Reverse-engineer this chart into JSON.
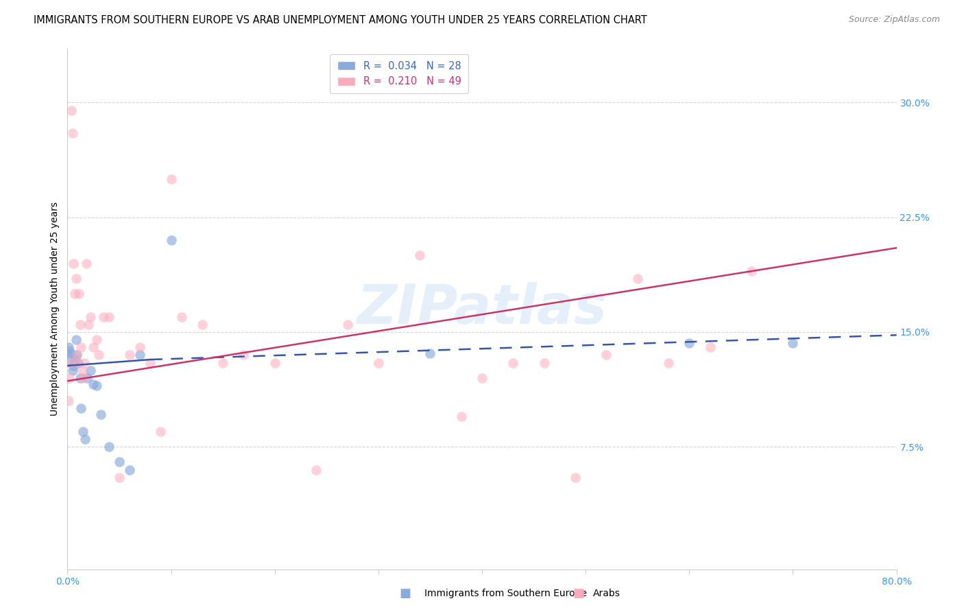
{
  "title": "IMMIGRANTS FROM SOUTHERN EUROPE VS ARAB UNEMPLOYMENT AMONG YOUTH UNDER 25 YEARS CORRELATION CHART",
  "source": "Source: ZipAtlas.com",
  "ylabel": "Unemployment Among Youth under 25 years",
  "ytick_vals": [
    0.0,
    0.075,
    0.15,
    0.225,
    0.3
  ],
  "ytick_labels": [
    "",
    "7.5%",
    "15.0%",
    "22.5%",
    "30.0%"
  ],
  "xlim": [
    0.0,
    0.8
  ],
  "ylim": [
    -0.005,
    0.335
  ],
  "watermark": "ZIPatlas",
  "blue_scatter_x": [
    0.0005,
    0.001,
    0.002,
    0.003,
    0.004,
    0.005,
    0.006,
    0.007,
    0.008,
    0.009,
    0.01,
    0.012,
    0.013,
    0.015,
    0.017,
    0.019,
    0.022,
    0.025,
    0.028,
    0.032,
    0.04,
    0.05,
    0.06,
    0.07,
    0.1,
    0.35,
    0.6,
    0.7
  ],
  "blue_scatter_y": [
    0.135,
    0.14,
    0.138,
    0.136,
    0.13,
    0.125,
    0.128,
    0.132,
    0.145,
    0.135,
    0.13,
    0.12,
    0.1,
    0.085,
    0.08,
    0.12,
    0.125,
    0.116,
    0.115,
    0.096,
    0.075,
    0.065,
    0.06,
    0.135,
    0.21,
    0.136,
    0.143,
    0.143
  ],
  "pink_scatter_x": [
    0.001,
    0.002,
    0.003,
    0.004,
    0.005,
    0.006,
    0.007,
    0.008,
    0.009,
    0.01,
    0.011,
    0.012,
    0.013,
    0.014,
    0.015,
    0.016,
    0.018,
    0.02,
    0.022,
    0.025,
    0.028,
    0.03,
    0.035,
    0.04,
    0.05,
    0.06,
    0.07,
    0.08,
    0.09,
    0.1,
    0.11,
    0.13,
    0.15,
    0.17,
    0.2,
    0.24,
    0.27,
    0.3,
    0.34,
    0.38,
    0.4,
    0.43,
    0.46,
    0.49,
    0.52,
    0.55,
    0.58,
    0.62,
    0.66
  ],
  "pink_scatter_y": [
    0.105,
    0.12,
    0.13,
    0.295,
    0.28,
    0.195,
    0.175,
    0.185,
    0.135,
    0.13,
    0.175,
    0.155,
    0.14,
    0.125,
    0.12,
    0.13,
    0.195,
    0.155,
    0.16,
    0.14,
    0.145,
    0.135,
    0.16,
    0.16,
    0.055,
    0.135,
    0.14,
    0.13,
    0.085,
    0.25,
    0.16,
    0.155,
    0.13,
    0.135,
    0.13,
    0.06,
    0.155,
    0.13,
    0.2,
    0.095,
    0.12,
    0.13,
    0.13,
    0.055,
    0.135,
    0.185,
    0.13,
    0.14,
    0.19
  ],
  "blue_line_x0": 0.0,
  "blue_line_x_split": 0.08,
  "blue_line_x1": 0.8,
  "blue_line_y0": 0.128,
  "blue_line_y_split": 0.132,
  "blue_line_y1": 0.148,
  "pink_line_x0": 0.0,
  "pink_line_x1": 0.8,
  "pink_line_y0": 0.118,
  "pink_line_y1": 0.205,
  "blue_color": "#88aadd",
  "blue_line_color": "#3355aa",
  "pink_color": "#ffaabb",
  "pink_line_color": "#cc3366",
  "blue_alpha": 0.65,
  "pink_alpha": 0.55,
  "scatter_size": 110,
  "background_color": "#ffffff",
  "title_fontsize": 10.5,
  "source_fontsize": 9,
  "legend_fontsize": 10.5,
  "axis_label_fontsize": 10,
  "tick_fontsize": 10,
  "ytick_color": "#3399ff",
  "xtick_color": "#3399ff"
}
